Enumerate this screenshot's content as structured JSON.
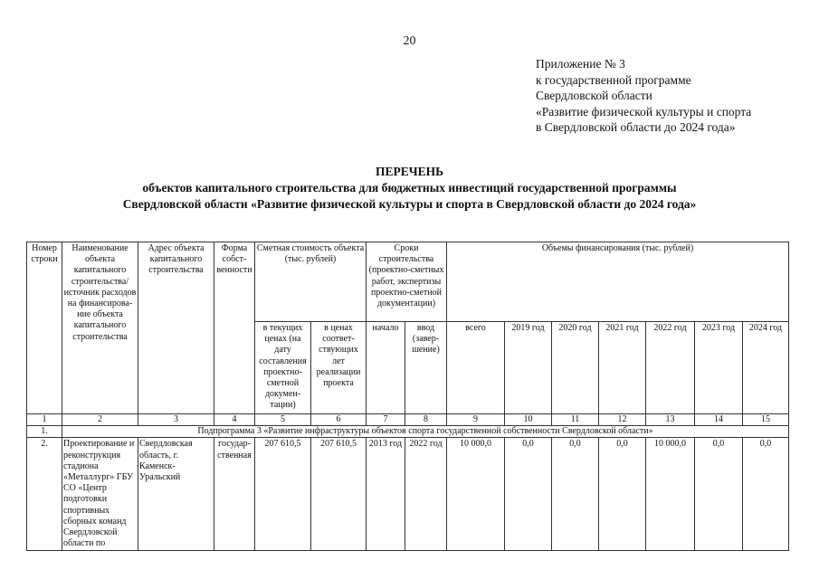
{
  "page_number": "20",
  "appendix": [
    "Приложение № 3",
    "к государственной программе",
    "Свердловской области",
    "«Развитие физической культуры и спорта",
    "в Свердловской области до 2024 года»"
  ],
  "title": [
    "ПЕРЕЧЕНЬ",
    "объектов капитального строительства для бюджетных инвестиций государственной программы",
    "Свердловской области «Развитие физической культуры и спорта в Свердловской области до 2024 года»"
  ],
  "table": {
    "headers": {
      "row_number": "Номер строки",
      "name": "Наименование объекта капитального строительства/ источник расходов на финансирова-ние объекта капитального строительства",
      "address": "Адрес объекта капитального строительства",
      "ownership": "Форма собст-венности",
      "estimated_cost": "Сметная стоимость объекта (тыс. рублей)",
      "cost_current": "в текущих ценах (на дату составления проектно-сметной докумен-тации)",
      "cost_years": "в ценах соответ-ствующих лет реализации проекта",
      "terms": "Сроки строительства (проектно-сметных работ, экспертизы проектно-сметной документации)",
      "start": "начало",
      "end": "ввод (завер-шение)",
      "funding": "Объемы финансирования (тыс. рублей)",
      "total": "всего",
      "years": [
        "2019 год",
        "2020 год",
        "2021 год",
        "2022 год",
        "2023 год",
        "2024 год"
      ]
    },
    "column_numbers": [
      "1",
      "2",
      "3",
      "4",
      "5",
      "6",
      "7",
      "8",
      "9",
      "10",
      "11",
      "12",
      "13",
      "14",
      "15"
    ],
    "subprogram": {
      "num": "1.",
      "text": "Подпрограмма 3 «Развитие инфраструктуры объектов спорта государственной собственности Свердловской области»"
    },
    "rows": [
      {
        "num": "2.",
        "name": "Проектирование и реконструкция стадиона «Металлург» ГБУ СО «Центр подготовки спортивных сборных команд Свердловской области по",
        "address": "Свердловская область, г. Каменск-Уральский",
        "ownership": "государ-ственная",
        "cost_current": "207 610,5",
        "cost_years": "207 610,5",
        "start": "2013 год",
        "end": "2022 год",
        "total": "10 000,0",
        "years": [
          "0,0",
          "0,0",
          "0,0",
          "10 000,0",
          "0,0",
          "0,0"
        ]
      }
    ]
  }
}
